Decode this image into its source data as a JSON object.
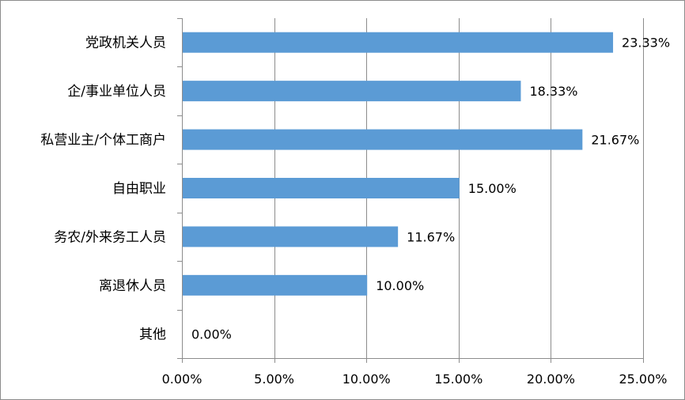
{
  "chart_data": {
    "type": "bar",
    "orientation": "horizontal",
    "categories": [
      "党政机关人员",
      "企/事业单位人员",
      "私营业主/个体工商户",
      "自由职业",
      "务农/外来务工人员",
      "离退休人员",
      "其他"
    ],
    "values": [
      23.33,
      18.33,
      21.67,
      15.0,
      11.67,
      10.0,
      0.0
    ],
    "data_labels": [
      "23.33%",
      "18.33%",
      "21.67%",
      "15.00%",
      "11.67%",
      "10.00%",
      "0.00%"
    ],
    "x_ticks": [
      0,
      5,
      10,
      15,
      20,
      25
    ],
    "x_tick_labels": [
      "0.00%",
      "5.00%",
      "10.00%",
      "15.00%",
      "20.00%",
      "25.00%"
    ],
    "xlim": [
      0,
      25
    ],
    "grid": "vertical",
    "legend": "none",
    "title": "",
    "xlabel": "",
    "ylabel": "",
    "bar_color": "#5b9bd5",
    "grid_color": "#8c8c8c"
  }
}
